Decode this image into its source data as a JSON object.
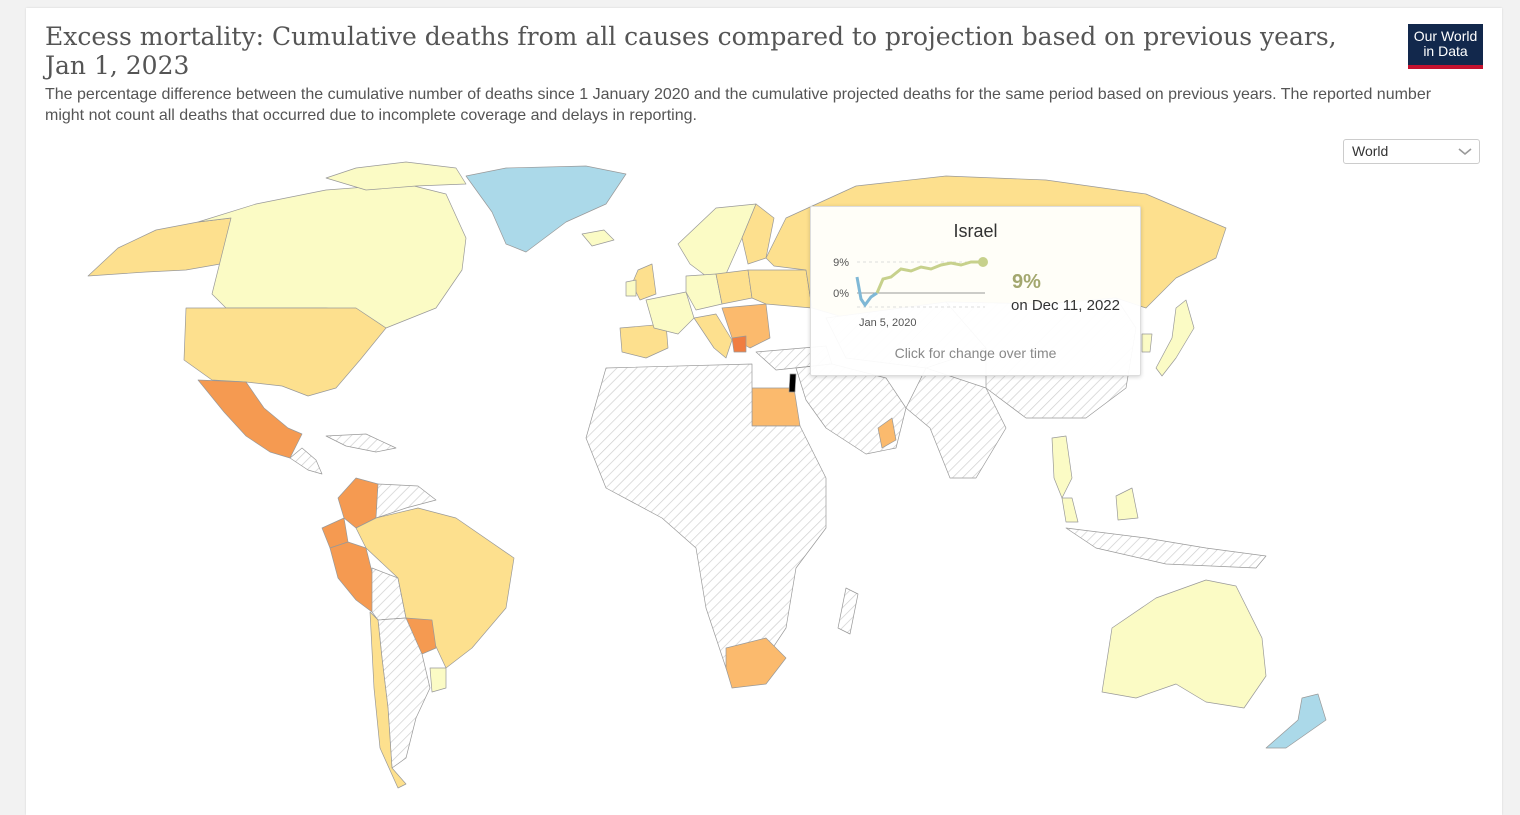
{
  "header": {
    "title": "Excess mortality: Cumulative deaths from all causes compared to projection based on previous years, Jan 1, 2023",
    "subtitle": "The percentage difference between the cumulative number of deaths since 1 January 2020 and the cumulative projected deaths for the same period based on previous years. The reported number might not count all deaths that occurred due to incomplete coverage and delays in reporting."
  },
  "logo": {
    "line1": "Our World",
    "line2": "in Data"
  },
  "region_select": {
    "value": "World",
    "icon": "chevron-down-icon"
  },
  "colors": {
    "lightest": "#fbfbc5",
    "light": "#fde08e",
    "mid": "#fbba6d",
    "high": "#f59a51",
    "higher": "#f07d41",
    "negative": "#abd9e9",
    "no_data": "#e6e6e6",
    "highlight": "#000000"
  },
  "tooltip": {
    "country": "Israel",
    "value": "9%",
    "date": "on Dec 11, 2022",
    "y_ticks": [
      "9%",
      "0%"
    ],
    "x_start": "Jan 5, 2020",
    "hint": "Click for change over time"
  }
}
